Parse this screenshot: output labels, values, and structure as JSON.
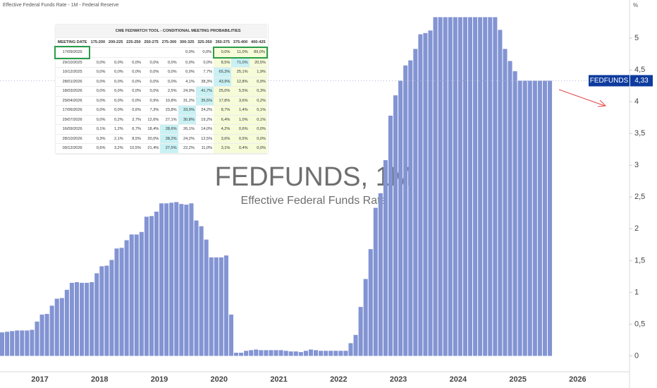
{
  "header": {
    "title": "Effective Federal Funds Rate - 1M - Federal Reserve",
    "unit": "%"
  },
  "chart_data": {
    "type": "bar",
    "watermark": "FEDFUNDS, 1M",
    "watermark_subtitle": "Effective Federal Funds Rate",
    "categories": [
      null,
      null,
      null,
      null,
      null,
      null,
      null,
      null,
      "2017",
      null,
      null,
      null,
      null,
      null,
      null,
      null,
      null,
      null,
      null,
      null,
      "2018",
      null,
      null,
      null,
      null,
      null,
      null,
      null,
      null,
      null,
      null,
      null,
      "2019",
      null,
      null,
      null,
      null,
      null,
      null,
      null,
      null,
      null,
      null,
      null,
      "2020",
      null,
      null,
      null,
      null,
      null,
      null,
      null,
      null,
      null,
      null,
      null,
      "2021",
      null,
      null,
      null,
      null,
      null,
      null,
      null,
      null,
      null,
      null,
      null,
      "2022",
      null,
      null,
      null,
      null,
      null,
      null,
      null,
      null,
      null,
      null,
      null,
      "2023",
      null,
      null,
      null,
      null,
      null,
      null,
      null,
      null,
      null,
      null,
      null,
      "2024",
      null,
      null,
      null,
      null,
      null,
      null,
      null,
      null,
      null,
      null,
      null,
      "2025",
      null,
      null,
      null,
      null,
      null,
      null,
      null,
      null,
      null,
      null,
      null,
      "2026",
      null,
      null,
      null,
      null,
      null,
      null,
      null,
      null,
      null
    ],
    "values": [
      0.37,
      0.38,
      0.39,
      0.4,
      0.4,
      0.4,
      0.41,
      0.54,
      0.65,
      0.66,
      0.79,
      0.9,
      0.91,
      1.04,
      1.15,
      1.16,
      1.15,
      1.15,
      1.16,
      1.3,
      1.41,
      1.42,
      1.51,
      1.69,
      1.7,
      1.82,
      1.91,
      1.91,
      1.95,
      2.19,
      2.2,
      2.27,
      2.4,
      2.4,
      2.41,
      2.42,
      2.39,
      2.38,
      2.4,
      2.13,
      2.04,
      1.83,
      1.55,
      1.55,
      1.55,
      1.58,
      0.65,
      0.05,
      0.05,
      0.08,
      0.09,
      0.1,
      0.09,
      0.09,
      0.09,
      0.09,
      0.09,
      0.08,
      0.07,
      0.07,
      0.06,
      0.08,
      0.1,
      0.09,
      0.08,
      0.08,
      0.08,
      0.08,
      0.08,
      0.08,
      0.2,
      0.33,
      0.77,
      1.21,
      1.68,
      2.33,
      2.56,
      3.08,
      3.78,
      4.1,
      4.33,
      4.57,
      4.65,
      4.83,
      5.06,
      5.08,
      5.12,
      5.33,
      5.33,
      5.33,
      5.33,
      5.33,
      5.33,
      5.33,
      5.33,
      5.33,
      5.33,
      5.33,
      5.33,
      5.33,
      5.13,
      4.83,
      4.64,
      4.48,
      4.33,
      4.33,
      4.33,
      4.33,
      4.33,
      4.33,
      4.33,
      null,
      null,
      null,
      null,
      null,
      null,
      null,
      null,
      null,
      null,
      null,
      null,
      null,
      null,
      null
    ],
    "color": "#8394d3",
    "ylim": [
      -0.25,
      5.6
    ],
    "yticks": [
      0,
      {
        "value": 0.5,
        "label": "0,5"
      },
      1,
      {
        "value": 1.5,
        "label": "1,5"
      },
      2,
      {
        "value": 2.5,
        "label": "2,5"
      },
      3,
      {
        "value": 3.5,
        "label": "3,5"
      },
      4,
      {
        "value": 4.5,
        "label": "4,5"
      },
      5
    ],
    "last_value": {
      "name": "FEDFUNDS",
      "value": 4.33,
      "label": "4,33",
      "color": "#0d3b9e"
    }
  },
  "table": {
    "title": "CME FEDWATCH TOOL - CONDITIONAL MEETING PROBABILITIES",
    "columns": [
      "MEETING DATE",
      "175-200",
      "200-225",
      "225-250",
      "250-275",
      "275-300",
      "300-325",
      "325-350",
      "350-375",
      "375-400",
      "400-425"
    ],
    "rows": [
      [
        "17/09/2025",
        null,
        null,
        null,
        null,
        null,
        "0,0%",
        "0,0%",
        "0,0%",
        "11,0%",
        "89,0%"
      ],
      [
        "29/10/2025",
        "0,0%",
        "0,0%",
        "0,0%",
        "0,0%",
        "0,0%",
        "0,0%",
        "0,0%",
        "8,5%",
        "71,0%",
        "20,5%"
      ],
      [
        "10/12/2025",
        "0,0%",
        "0,0%",
        "0,0%",
        "0,0%",
        "0,0%",
        "0,0%",
        "7,7%",
        "65,3%",
        "25,1%",
        "1,9%"
      ],
      [
        "28/01/2026",
        "0,0%",
        "0,0%",
        "0,0%",
        "0,0%",
        "0,0%",
        "4,1%",
        "38,3%",
        "43,9%",
        "12,8%",
        "0,9%"
      ],
      [
        "18/03/2026",
        "0,0%",
        "0,0%",
        "0,0%",
        "0,0%",
        "2,5%",
        "24,9%",
        "41,7%",
        "25,0%",
        "5,5%",
        "0,3%"
      ],
      [
        "29/04/2026",
        "0,0%",
        "0,0%",
        "0,0%",
        "0,9%",
        "10,8%",
        "31,2%",
        "35,5%",
        "17,8%",
        "3,6%",
        "0,2%"
      ],
      [
        "17/06/2026",
        "0,0%",
        "0,0%",
        "0,6%",
        "7,3%",
        "23,8%",
        "33,9%",
        "24,2%",
        "8,7%",
        "1,4%",
        "0,1%"
      ],
      [
        "29/07/2026",
        "0,0%",
        "0,2%",
        "2,7%",
        "12,6%",
        "27,1%",
        "30,8%",
        "19,2%",
        "6,4%",
        "1,0%",
        "0,1%"
      ],
      [
        "16/09/2026",
        "0,1%",
        "1,2%",
        "6,7%",
        "18,4%",
        "28,6%",
        "26,1%",
        "14,0%",
        "4,2%",
        "0,6%",
        "0,0%"
      ],
      [
        "28/10/2026",
        "0,3%",
        "2,1%",
        "8,5%",
        "20,0%",
        "28,2%",
        "24,2%",
        "12,5%",
        "3,6%",
        "0,5%",
        "0,0%"
      ],
      [
        "09/12/2026",
        "0,6%",
        "3,2%",
        "10,5%",
        "21,4%",
        "27,5%",
        "22,2%",
        "11,0%",
        "3,1%",
        "0,4%",
        "0,0%"
      ]
    ]
  }
}
